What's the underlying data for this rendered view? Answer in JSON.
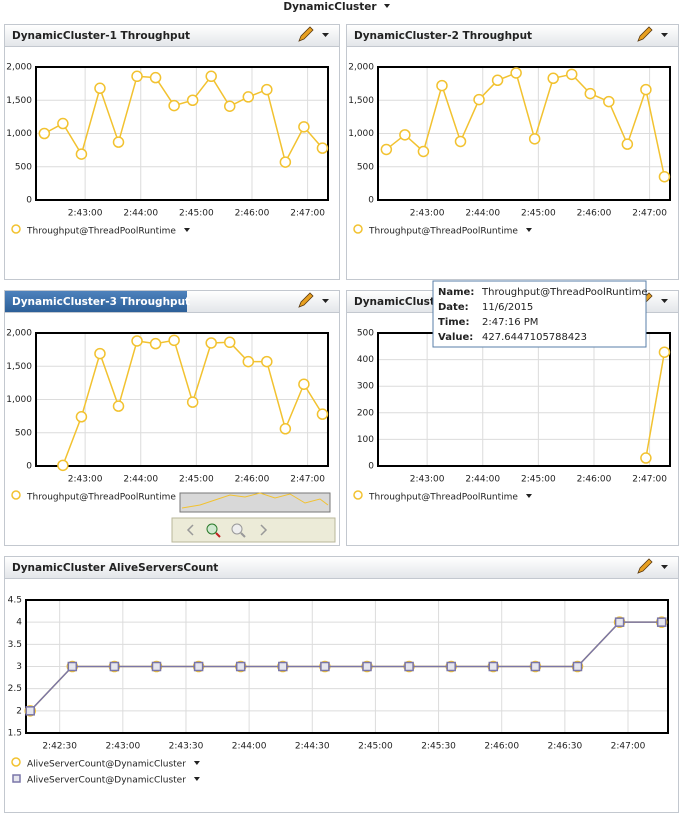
{
  "header": {
    "title": "DynamicCluster"
  },
  "chart_data": [
    {
      "type": "line",
      "title": "DynamicCluster-1 Throughput",
      "x": [
        "2:42:16",
        "2:42:36",
        "2:42:56",
        "2:43:16",
        "2:43:36",
        "2:43:56",
        "2:44:16",
        "2:44:36",
        "2:44:56",
        "2:45:16",
        "2:45:36",
        "2:45:56",
        "2:46:16",
        "2:46:36",
        "2:46:56",
        "2:47:16"
      ],
      "series": [
        {
          "name": "Throughput@ThreadPoolRuntime",
          "color": "#f2c230",
          "marker": "circle",
          "values": [
            1000,
            1150,
            690,
            1680,
            870,
            1860,
            1840,
            1420,
            1500,
            1860,
            1410,
            1550,
            1660,
            570,
            1100,
            780
          ]
        }
      ],
      "xlim": [
        "2:42:07",
        "2:47:22"
      ],
      "xticks": [
        "2:43:00",
        "2:44:00",
        "2:45:00",
        "2:46:00",
        "2:47:00"
      ],
      "ylim": [
        0,
        2000
      ],
      "yticks": [
        0,
        500,
        {
          "value": 1000,
          "label": "1,000"
        },
        {
          "value": 1500,
          "label": "1,500"
        },
        {
          "value": 2000,
          "label": "2,000"
        }
      ],
      "grid": true
    },
    {
      "type": "line",
      "title": "DynamicCluster-2 Throughput",
      "x": [
        "2:42:16",
        "2:42:36",
        "2:42:56",
        "2:43:16",
        "2:43:36",
        "2:43:56",
        "2:44:16",
        "2:44:36",
        "2:44:56",
        "2:45:16",
        "2:45:36",
        "2:45:56",
        "2:46:16",
        "2:46:36",
        "2:46:56",
        "2:47:16"
      ],
      "series": [
        {
          "name": "Throughput@ThreadPoolRuntime",
          "color": "#f2c230",
          "marker": "circle",
          "values": [
            760,
            980,
            730,
            1720,
            880,
            1510,
            1800,
            1910,
            920,
            1830,
            1890,
            1600,
            1480,
            840,
            1660,
            350
          ]
        }
      ],
      "xlim": [
        "2:42:07",
        "2:47:22"
      ],
      "xticks": [
        "2:43:00",
        "2:44:00",
        "2:45:00",
        "2:46:00",
        "2:47:00"
      ],
      "ylim": [
        0,
        2000
      ],
      "yticks": [
        0,
        500,
        {
          "value": 1000,
          "label": "1,000"
        },
        {
          "value": 1500,
          "label": "1,500"
        },
        {
          "value": 2000,
          "label": "2,000"
        }
      ],
      "grid": true
    },
    {
      "type": "line",
      "title": "DynamicCluster-3 Throughput",
      "x": [
        "2:42:36",
        "2:42:56",
        "2:43:16",
        "2:43:36",
        "2:43:56",
        "2:44:16",
        "2:44:36",
        "2:44:56",
        "2:45:16",
        "2:45:36",
        "2:45:56",
        "2:46:16",
        "2:46:36",
        "2:46:56",
        "2:47:16"
      ],
      "series": [
        {
          "name": "Throughput@ThreadPoolRuntime",
          "color": "#f2c230",
          "marker": "circle",
          "values": [
            10,
            740,
            1690,
            900,
            1880,
            1840,
            1890,
            960,
            1850,
            1860,
            1570,
            1570,
            560,
            1230,
            780
          ]
        }
      ],
      "xlim": [
        "2:42:07",
        "2:47:22"
      ],
      "xticks": [
        "2:43:00",
        "2:44:00",
        "2:45:00",
        "2:46:00",
        "2:47:00"
      ],
      "ylim": [
        0,
        2000
      ],
      "yticks": [
        0,
        500,
        {
          "value": 1000,
          "label": "1,000"
        },
        {
          "value": 1500,
          "label": "1,500"
        },
        {
          "value": 2000,
          "label": "2,000"
        }
      ],
      "grid": true
    },
    {
      "type": "line",
      "title": "DynamicCluste",
      "x": [
        "2:46:56",
        "2:47:16"
      ],
      "series": [
        {
          "name": "Throughput@ThreadPoolRuntime",
          "color": "#f2c230",
          "marker": "circle",
          "values": [
            30,
            427.6447105788423
          ]
        }
      ],
      "xlim": [
        "2:42:07",
        "2:47:22"
      ],
      "xticks": [
        "2:43:00",
        "2:44:00",
        "2:45:00",
        "2:46:00",
        "2:47:00"
      ],
      "ylim": [
        0,
        500
      ],
      "yticks": [
        0,
        100,
        200,
        300,
        400,
        500
      ],
      "grid": true
    },
    {
      "type": "line",
      "title": "DynamicCluster AliveServersCount",
      "x": [
        "2:42:16",
        "2:42:36",
        "2:42:56",
        "2:43:16",
        "2:43:36",
        "2:43:56",
        "2:44:16",
        "2:44:36",
        "2:44:56",
        "2:45:16",
        "2:45:36",
        "2:45:56",
        "2:46:16",
        "2:46:36",
        "2:46:56",
        "2:47:16"
      ],
      "series": [
        {
          "name": "AliveServerCount@DynamicCluster",
          "color": "#f2c230",
          "marker": "circle",
          "values": [
            2,
            3,
            3,
            3,
            3,
            3,
            3,
            3,
            3,
            3,
            3,
            3,
            3,
            3,
            4,
            4
          ]
        },
        {
          "name": "AliveServerCount@DynamicCluster",
          "color": "#7a76a8",
          "marker": "square",
          "values": [
            2,
            3,
            3,
            3,
            3,
            3,
            3,
            3,
            3,
            3,
            3,
            3,
            3,
            3,
            4,
            4
          ]
        }
      ],
      "xlim": [
        "2:42:14",
        "2:47:19"
      ],
      "xticks": [
        "2:42:30",
        "2:43:00",
        "2:43:30",
        "2:44:00",
        "2:44:30",
        "2:45:00",
        "2:45:30",
        "2:46:00",
        "2:46:30",
        "2:47:00"
      ],
      "ylim": [
        1.5,
        4.5
      ],
      "yticks": [
        1.5,
        2,
        2.5,
        3,
        3.5,
        4,
        4.5
      ],
      "grid": true
    }
  ],
  "tooltip": {
    "name_label": "Name:",
    "date_label": "Date:",
    "date": "11/6/2015",
    "time_label": "Time:",
    "time": "2:47:16 PM",
    "value_label": "Value:"
  }
}
